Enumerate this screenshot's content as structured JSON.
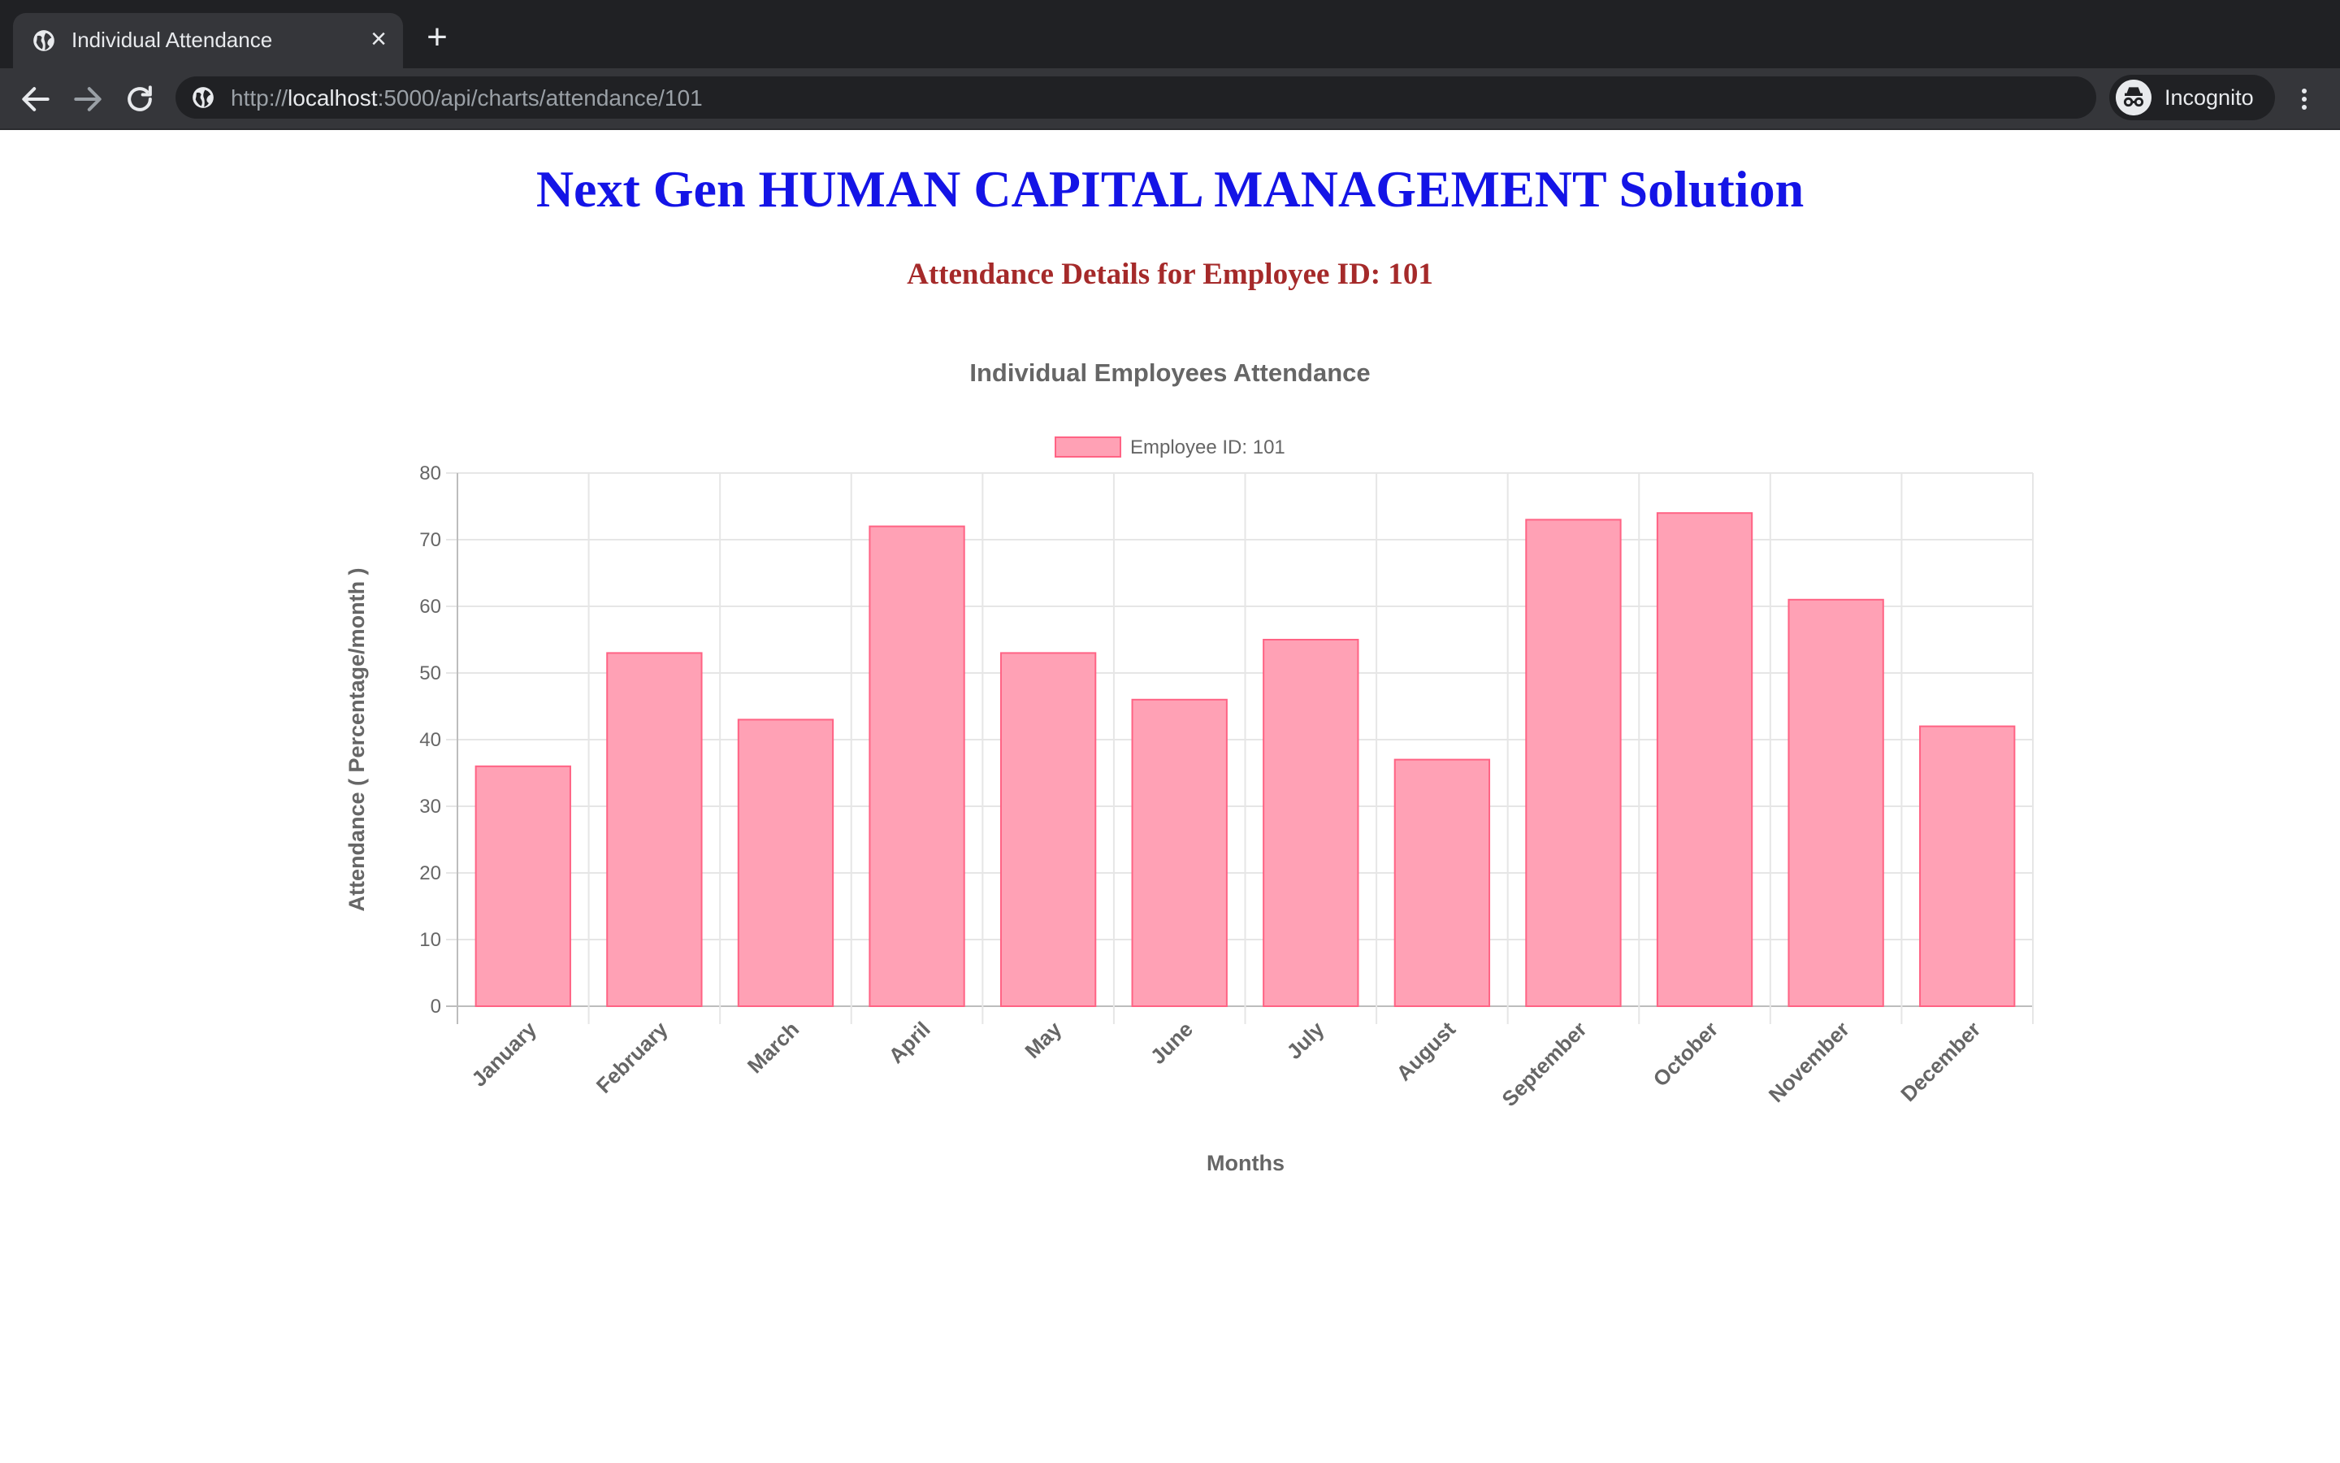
{
  "browser": {
    "tab_title": "Individual Attendance",
    "tab_close": "×",
    "new_tab": "+",
    "url_scheme": "http://",
    "url_host": "localhost",
    "url_rest": ":5000/api/charts/attendance/101",
    "profile_label": "Incognito"
  },
  "page": {
    "heading": "Next Gen HUMAN CAPITAL MANAGEMENT Solution",
    "subheading": "Attendance Details for Employee ID: 101"
  },
  "colors": {
    "heading": "#1414e6",
    "subheading": "#a52a2a",
    "bar_fill": "#ffa1b5",
    "bar_border": "#ff6384"
  },
  "chart_data": {
    "type": "bar",
    "title": "Individual Employees Attendance",
    "xlabel": "Months",
    "ylabel": "Attendance ( Percentage/month )",
    "categories": [
      "January",
      "February",
      "March",
      "April",
      "May",
      "June",
      "July",
      "August",
      "September",
      "October",
      "November",
      "December"
    ],
    "series": [
      {
        "name": "Employee ID: 101",
        "values": [
          36,
          53,
          43,
          72,
          53,
          46,
          55,
          37,
          73,
          74,
          61,
          42
        ]
      }
    ],
    "ylim": [
      0,
      80
    ],
    "yticks": [
      0,
      10,
      20,
      30,
      40,
      50,
      60,
      70,
      80
    ],
    "grid": true,
    "legend": "top-center"
  }
}
